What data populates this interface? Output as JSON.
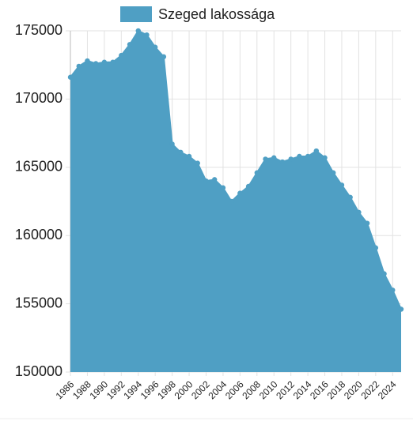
{
  "chart_data": {
    "type": "area",
    "x": [
      1986,
      1987,
      1988,
      1989,
      1990,
      1991,
      1992,
      1993,
      1994,
      1995,
      1996,
      1997,
      1998,
      1999,
      2000,
      2001,
      2002,
      2003,
      2004,
      2005,
      2006,
      2007,
      2008,
      2009,
      2010,
      2011,
      2012,
      2013,
      2014,
      2015,
      2016,
      2017,
      2018,
      2019,
      2020,
      2021,
      2022,
      2023,
      2024,
      2025
    ],
    "series": [
      {
        "name": "Szeged lakossága",
        "color": "#4f9fc4",
        "values": [
          171600,
          172400,
          172800,
          172600,
          172700,
          172700,
          173200,
          174000,
          175000,
          174700,
          173800,
          173100,
          166700,
          166100,
          165800,
          165300,
          164000,
          164100,
          163500,
          162500,
          163100,
          163600,
          164600,
          165600,
          165700,
          165400,
          165600,
          165800,
          165800,
          166200,
          165700,
          164600,
          163700,
          162800,
          161700,
          160900,
          159100,
          157200,
          156000,
          154600
        ]
      }
    ],
    "xlim": [
      1986,
      2025
    ],
    "xticks": [
      1986,
      1988,
      1990,
      1992,
      1994,
      1996,
      1998,
      2000,
      2002,
      2004,
      2006,
      2008,
      2010,
      2012,
      2014,
      2016,
      2018,
      2020,
      2022,
      2024
    ],
    "ylim": [
      150000,
      175000
    ],
    "yticks": [
      150000,
      155000,
      160000,
      165000,
      170000,
      175000
    ],
    "grid": true,
    "legend": "top"
  }
}
